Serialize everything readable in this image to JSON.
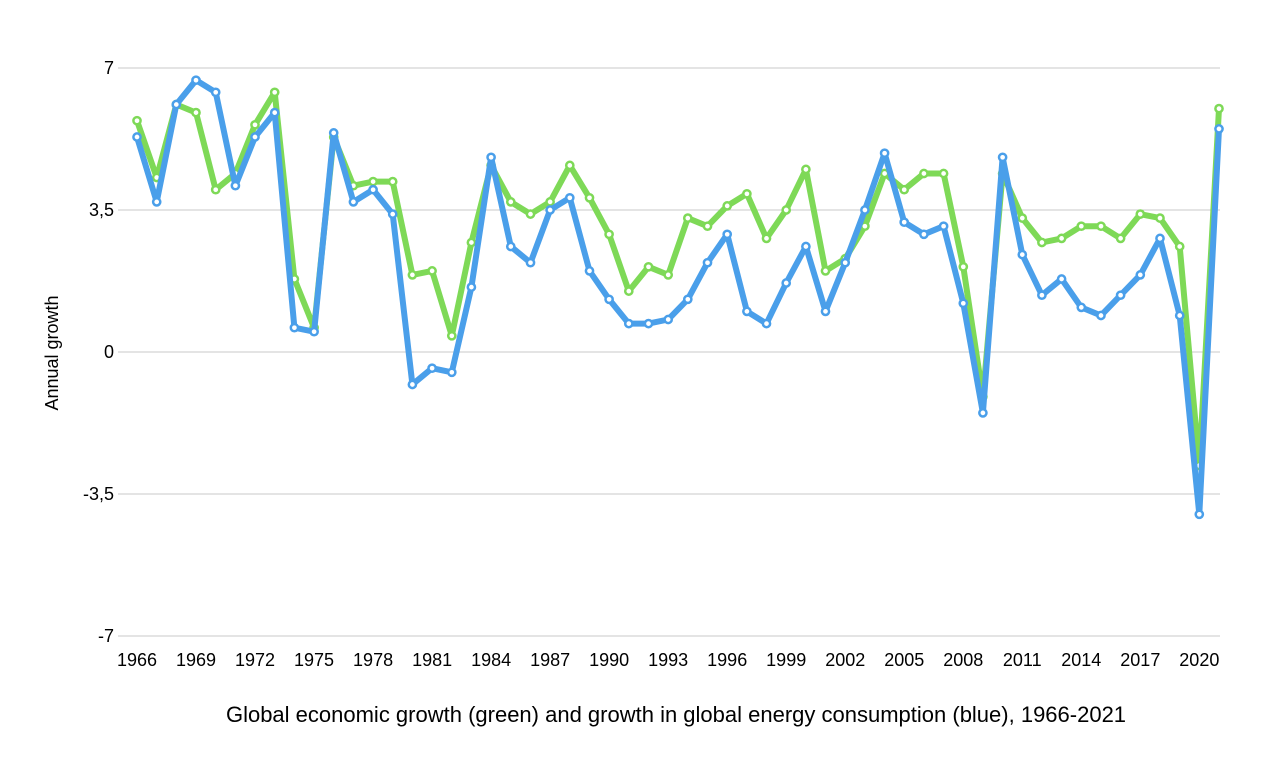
{
  "chart_data": {
    "type": "line",
    "title": "",
    "caption": "Global economic growth (green) and growth in global energy consumption (blue), 1966-2021",
    "xlabel": "",
    "ylabel": "Annual growth",
    "ylim": [
      -7,
      7
    ],
    "y_ticks": [
      7,
      3.5,
      0,
      -3.5,
      -7
    ],
    "y_tick_labels": [
      "7",
      "3,5",
      "0",
      "-3,5",
      "-7"
    ],
    "x_tick_labels": [
      "1966",
      "1969",
      "1972",
      "1975",
      "1978",
      "1981",
      "1984",
      "1987",
      "1990",
      "1993",
      "1996",
      "1999",
      "2002",
      "2005",
      "2008",
      "2011",
      "2014",
      "2017",
      "2020"
    ],
    "x": [
      1966,
      1967,
      1968,
      1969,
      1970,
      1971,
      1972,
      1973,
      1974,
      1975,
      1976,
      1977,
      1978,
      1979,
      1980,
      1981,
      1982,
      1983,
      1984,
      1985,
      1986,
      1987,
      1988,
      1989,
      1990,
      1991,
      1992,
      1993,
      1994,
      1995,
      1996,
      1997,
      1998,
      1999,
      2000,
      2001,
      2002,
      2003,
      2004,
      2005,
      2006,
      2007,
      2008,
      2009,
      2010,
      2011,
      2012,
      2013,
      2014,
      2015,
      2016,
      2017,
      2018,
      2019,
      2020,
      2021
    ],
    "grid": true,
    "legend": "none",
    "series": [
      {
        "key": "economic",
        "color": "#7ED957",
        "values": [
          5.7,
          4.3,
          6.1,
          5.9,
          4.0,
          4.4,
          5.6,
          6.4,
          1.8,
          0.6,
          5.3,
          4.1,
          4.2,
          4.2,
          1.9,
          2.0,
          0.4,
          2.7,
          4.6,
          3.7,
          3.4,
          3.7,
          4.6,
          3.8,
          2.9,
          1.5,
          2.1,
          1.9,
          3.3,
          3.1,
          3.6,
          3.9,
          2.8,
          3.5,
          4.5,
          2.0,
          2.3,
          3.1,
          4.4,
          4.0,
          4.4,
          4.4,
          2.1,
          -1.1,
          4.4,
          3.3,
          2.7,
          2.8,
          3.1,
          3.1,
          2.8,
          3.4,
          3.3,
          2.6,
          -2.8,
          6.0
        ],
        "value_labels_shown": false
      },
      {
        "key": "energy",
        "color": "#4A9FEA",
        "values": [
          5.3,
          3.7,
          6.1,
          6.7,
          6.4,
          4.1,
          5.3,
          5.9,
          0.6,
          0.5,
          5.4,
          3.7,
          4.0,
          3.4,
          -0.8,
          -0.4,
          -0.5,
          1.6,
          4.8,
          2.6,
          2.2,
          3.5,
          3.8,
          2.0,
          1.3,
          0.7,
          0.7,
          0.8,
          1.3,
          2.2,
          2.9,
          1.0,
          0.7,
          1.7,
          2.6,
          1.0,
          2.2,
          3.5,
          4.9,
          3.2,
          2.9,
          3.1,
          1.2,
          -1.5,
          4.8,
          2.4,
          1.4,
          1.8,
          1.1,
          0.9,
          1.4,
          1.9,
          2.8,
          0.9,
          -4.0,
          5.5
        ],
        "value_labels_shown": false
      }
    ]
  }
}
